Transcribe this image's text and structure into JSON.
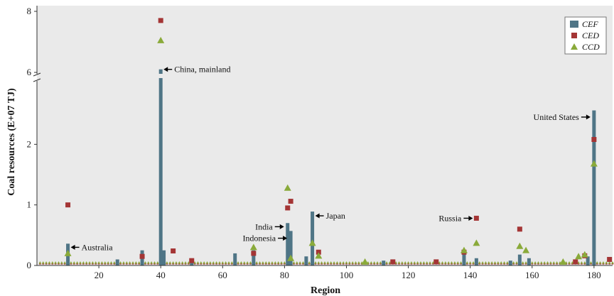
{
  "chart_data": {
    "type": "bar",
    "xlabel": "Region",
    "ylabel": "Coal resources (E+07 TJ)",
    "xlim": [
      0,
      186
    ],
    "ylim_lower": [
      0,
      3
    ],
    "ylim_upper": [
      6,
      8
    ],
    "axis_break": [
      3,
      6
    ],
    "x_ticks": [
      20,
      40,
      60,
      80,
      100,
      120,
      140,
      160,
      180
    ],
    "y_ticks": [
      0,
      1,
      2,
      6,
      8
    ],
    "legend_position": "top-right",
    "series": [
      {
        "name": "CEF",
        "marker": "bar",
        "color": "#4f7586",
        "points": [
          [
            10,
            0.36
          ],
          [
            26,
            0.1
          ],
          [
            34,
            0.25
          ],
          [
            40,
            6.1
          ],
          [
            41,
            0.25
          ],
          [
            50,
            0.05
          ],
          [
            64,
            0.2
          ],
          [
            70,
            0.25
          ],
          [
            81,
            0.7
          ],
          [
            82,
            0.57
          ],
          [
            87,
            0.15
          ],
          [
            89,
            0.89
          ],
          [
            112,
            0.08
          ],
          [
            138,
            0.2
          ],
          [
            142,
            0.12
          ],
          [
            153,
            0.08
          ],
          [
            156,
            0.18
          ],
          [
            159,
            0.12
          ],
          [
            178,
            0.15
          ],
          [
            180,
            2.56
          ]
        ]
      },
      {
        "name": "CED",
        "marker": "square",
        "color": "#a43535",
        "points": [
          [
            10,
            1.0
          ],
          [
            34,
            0.15
          ],
          [
            40,
            7.7
          ],
          [
            44,
            0.24
          ],
          [
            50,
            0.08
          ],
          [
            70,
            0.2
          ],
          [
            81,
            0.95
          ],
          [
            82,
            1.06
          ],
          [
            91,
            0.22
          ],
          [
            115,
            0.06
          ],
          [
            129,
            0.06
          ],
          [
            138,
            0.22
          ],
          [
            142,
            0.78
          ],
          [
            156,
            0.6
          ],
          [
            174,
            0.06
          ],
          [
            177,
            0.16
          ],
          [
            180,
            2.08
          ],
          [
            185,
            0.1
          ]
        ]
      },
      {
        "name": "CCD",
        "marker": "triangle",
        "color": "#8aaa3a",
        "points": [
          [
            10,
            0.2
          ],
          [
            40,
            7.05
          ],
          [
            70,
            0.3
          ],
          [
            81,
            1.28
          ],
          [
            82,
            0.12
          ],
          [
            89,
            0.37
          ],
          [
            91,
            0.16
          ],
          [
            106,
            0.06
          ],
          [
            138,
            0.25
          ],
          [
            142,
            0.37
          ],
          [
            156,
            0.32
          ],
          [
            158,
            0.25
          ],
          [
            170,
            0.06
          ],
          [
            175,
            0.15
          ],
          [
            177,
            0.18
          ],
          [
            180,
            1.68
          ]
        ]
      }
    ],
    "annotations": [
      {
        "text": "Australia",
        "x": 10,
        "y": 0.3,
        "arrow": "left"
      },
      {
        "text": "China, mainland",
        "x": 40,
        "y": 6.1,
        "arrow": "left"
      },
      {
        "text": "India",
        "x": 81,
        "y": 0.64,
        "arrow": "right"
      },
      {
        "text": "Indonesia",
        "x": 82,
        "y": 0.45,
        "arrow": "right"
      },
      {
        "text": "Japan",
        "x": 89,
        "y": 0.82,
        "arrow": "left"
      },
      {
        "text": "Russia",
        "x": 142,
        "y": 0.78,
        "arrow": "right"
      },
      {
        "text": "United States",
        "x": 180,
        "y": 2.45,
        "arrow": "right"
      }
    ]
  }
}
